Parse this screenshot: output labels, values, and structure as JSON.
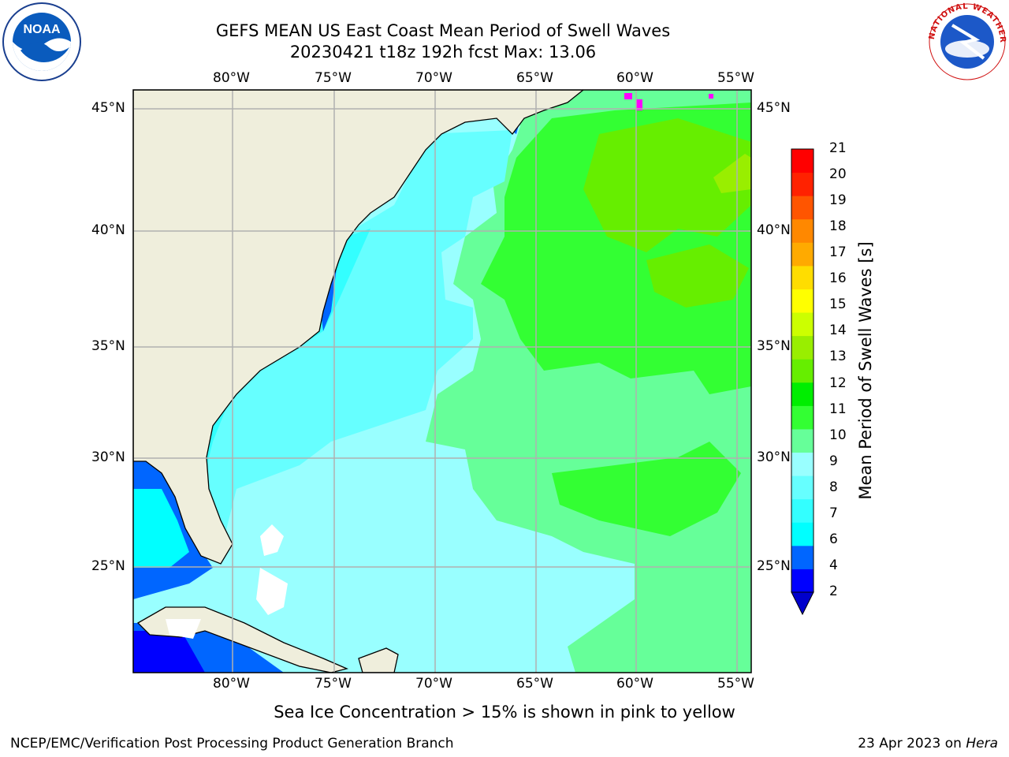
{
  "header": {
    "title_line1": "GEFS MEAN US East Coast Mean Period of Swell Waves",
    "title_line2": "20230421 t18z 192h fcst   Max: 13.06"
  },
  "logos": {
    "left": {
      "text": "NOAA",
      "icon": "noaa-logo"
    },
    "right": {
      "text": "NATIONAL WEATHER SERVICE",
      "icon": "nws-logo"
    }
  },
  "map": {
    "lon_labels": [
      "80°W",
      "75°W",
      "70°W",
      "65°W",
      "60°W",
      "55°W"
    ],
    "lat_labels": [
      "45°N",
      "40°N",
      "35°N",
      "30°N",
      "25°N"
    ],
    "lon_range": [
      "85°W",
      "54.5°W"
    ],
    "lat_range": [
      "20.5°N",
      "46°N"
    ],
    "colors": {
      "land": "#efeedc",
      "grid": "#b0b0b0",
      "coast": "#000000"
    }
  },
  "colorbar": {
    "title": "Mean Period of Swell Waves [s]",
    "ticks": [
      "2",
      "4",
      "6",
      "7",
      "8",
      "9",
      "10",
      "11",
      "12",
      "13",
      "14",
      "15",
      "16",
      "17",
      "18",
      "19",
      "20",
      "21"
    ],
    "colors": [
      "#0000ff",
      "#0066ff",
      "#00ffff",
      "#33ffff",
      "#66ffff",
      "#99ffff",
      "#66ff99",
      "#33ff33",
      "#00ee00",
      "#66ee00",
      "#99ee00",
      "#ccff00",
      "#ffff00",
      "#ffdd00",
      "#ffaa00",
      "#ff8800",
      "#ff5500",
      "#ff2200",
      "#ff0000"
    ],
    "extend_color": "#0000cc"
  },
  "note": "Sea Ice Concentration > 15% is shown in pink to yellow",
  "footer": {
    "left": "NCEP/EMC/Verification Post Processing Product Generation Branch",
    "right_prefix": "23 Apr 2023 on ",
    "right_machine": "Hera"
  }
}
